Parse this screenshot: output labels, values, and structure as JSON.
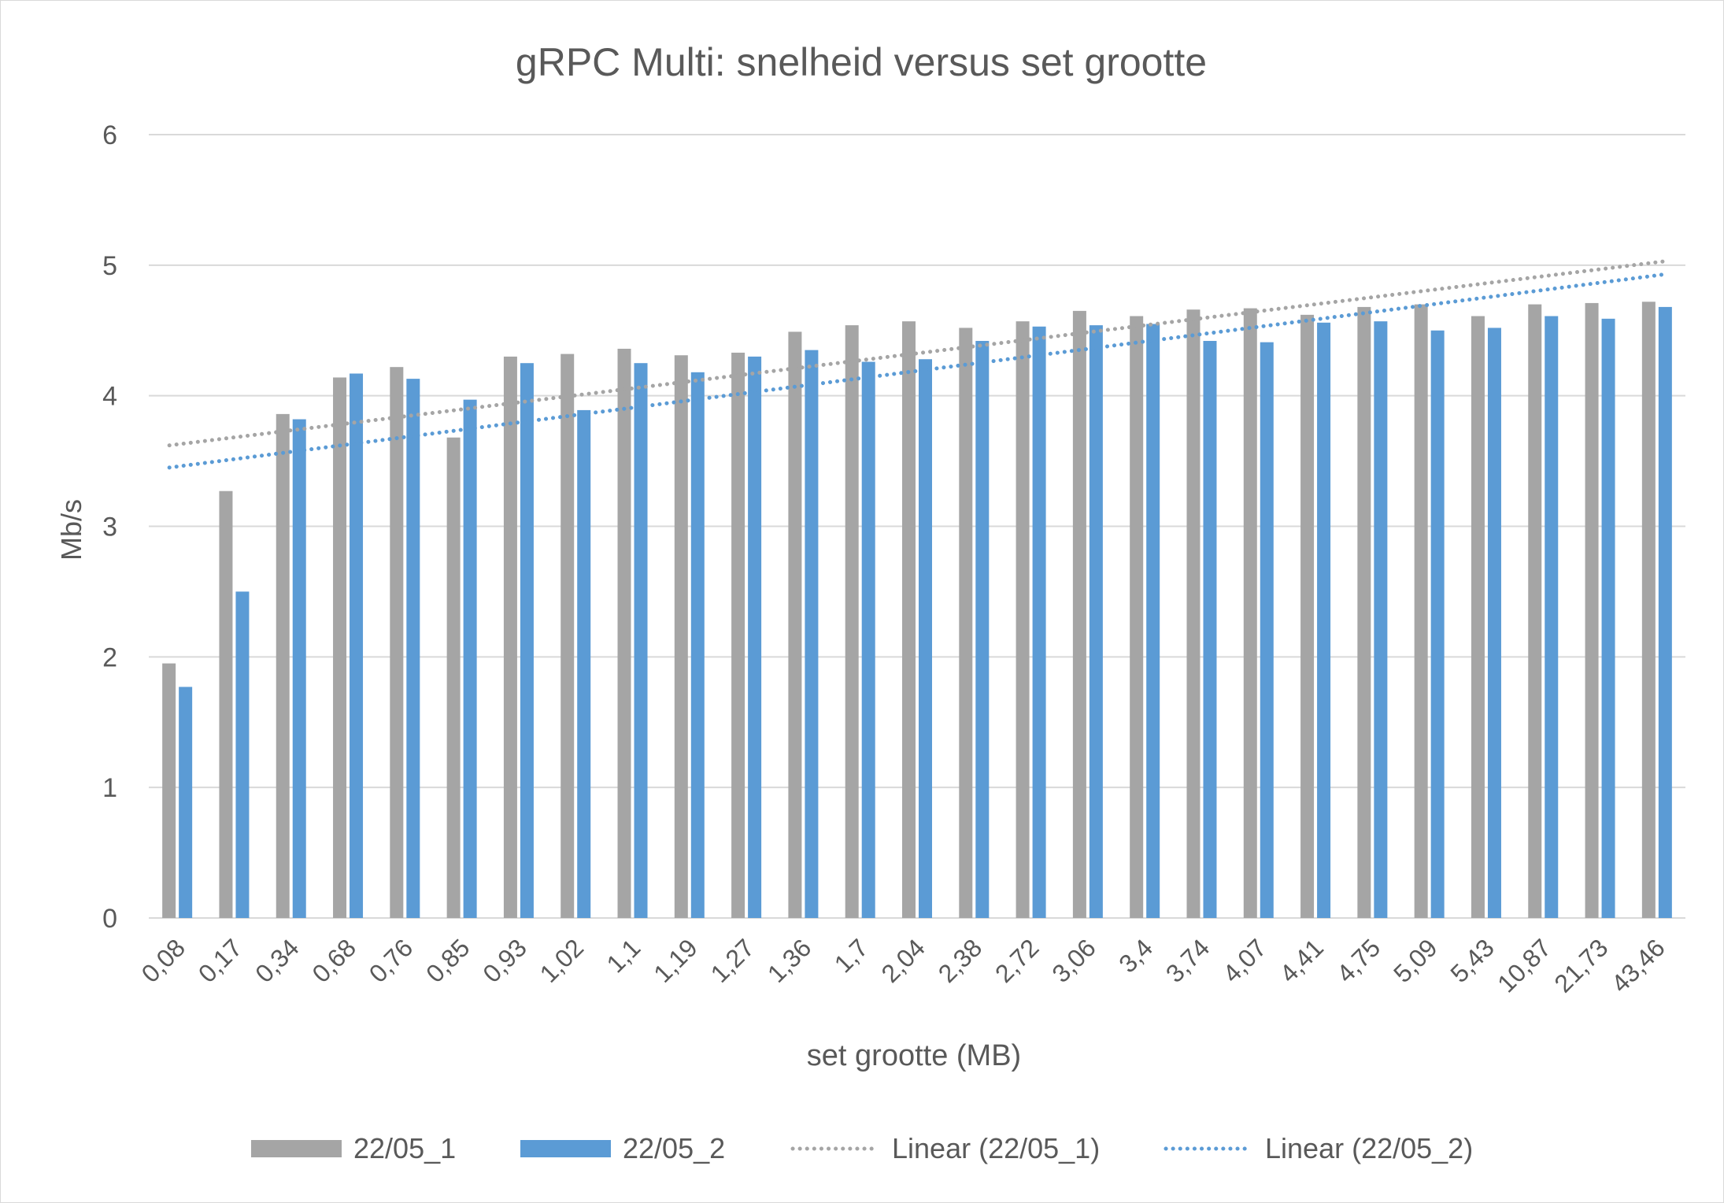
{
  "chart_data": {
    "type": "bar",
    "title": "gRPC Multi: snelheid versus set grootte",
    "xlabel": "set grootte (MB)",
    "ylabel": "Mb/s",
    "ylim": [
      0,
      6
    ],
    "yticks": [
      "0",
      "1",
      "2",
      "3",
      "4",
      "5",
      "6"
    ],
    "grid": true,
    "legend_position": "bottom",
    "categories": [
      "0,08",
      "0,17",
      "0,34",
      "0,68",
      "0,76",
      "0,85",
      "0,93",
      "1,02",
      "1,1",
      "1,19",
      "1,27",
      "1,36",
      "1,7",
      "2,04",
      "2,38",
      "2,72",
      "3,06",
      "3,4",
      "3,74",
      "4,07",
      "4,41",
      "4,75",
      "5,09",
      "5,43",
      "10,87",
      "21,73",
      "43,46"
    ],
    "series": [
      {
        "name": "22/05_1",
        "color": "#a5a5a5",
        "values": [
          1.95,
          3.27,
          3.86,
          4.14,
          4.22,
          3.68,
          4.3,
          4.32,
          4.36,
          4.31,
          4.33,
          4.49,
          4.54,
          4.57,
          4.52,
          4.57,
          4.65,
          4.61,
          4.66,
          4.67,
          4.62,
          4.68,
          4.7,
          4.61,
          4.7,
          4.71,
          4.72
        ]
      },
      {
        "name": "22/05_2",
        "color": "#5b9bd5",
        "values": [
          1.77,
          2.5,
          3.82,
          4.17,
          4.13,
          3.97,
          4.25,
          3.89,
          4.25,
          4.18,
          4.3,
          4.35,
          4.26,
          4.28,
          4.42,
          4.53,
          4.54,
          4.55,
          4.42,
          4.41,
          4.56,
          4.57,
          4.5,
          4.52,
          4.61,
          4.59,
          4.68
        ]
      }
    ],
    "trendlines": [
      {
        "name": "Linear (22/05_1)",
        "color": "#a5a5a5",
        "start": 3.62,
        "end": 5.03
      },
      {
        "name": "Linear (22/05_2)",
        "color": "#5b9bd5",
        "start": 3.45,
        "end": 4.93
      }
    ]
  }
}
